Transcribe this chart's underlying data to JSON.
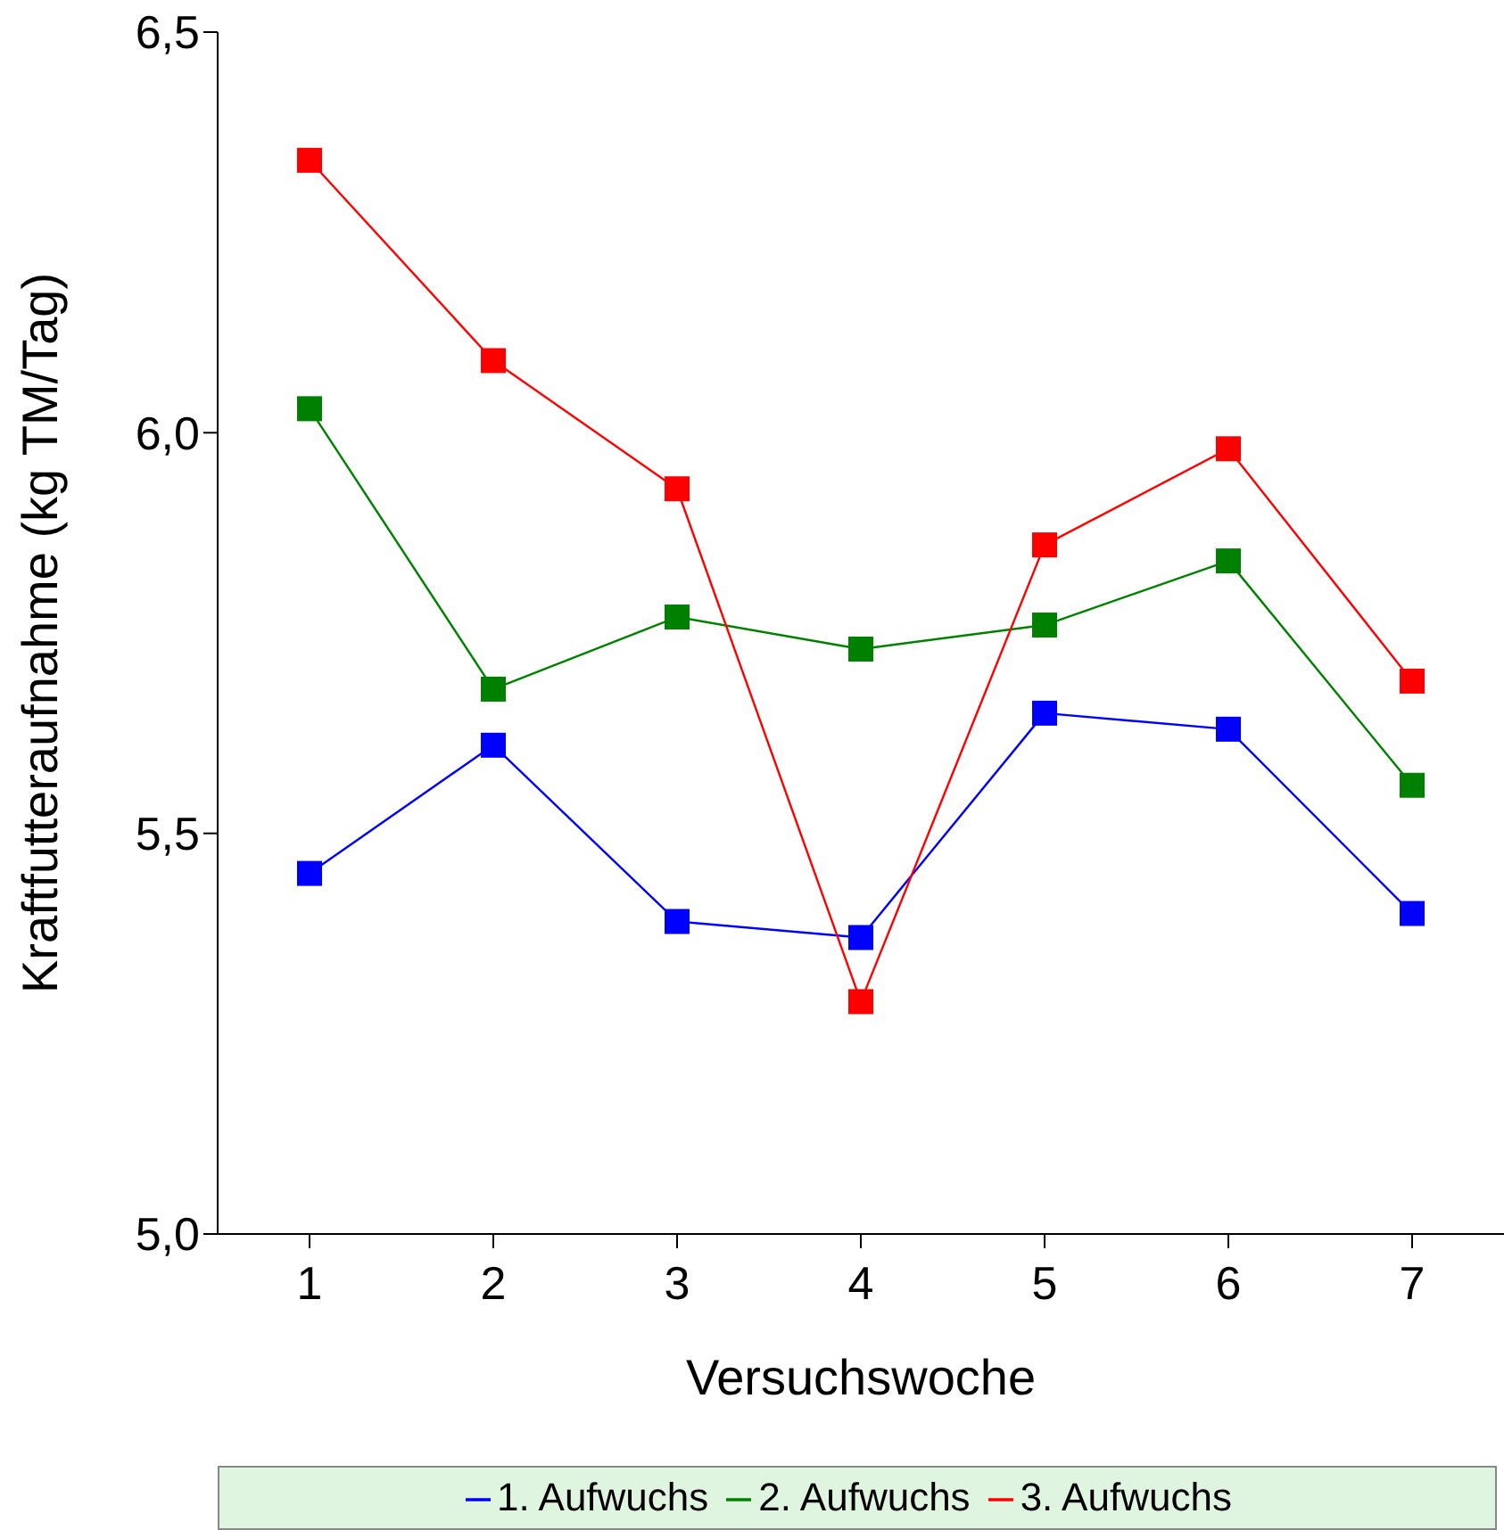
{
  "chart_data": {
    "type": "line",
    "xlabel": "Versuchswoche",
    "ylabel": "Kraftfutteraufnahme (kg TM/Tag)",
    "x": [
      1,
      2,
      3,
      4,
      5,
      6,
      7
    ],
    "xlim": [
      0.5,
      7.5
    ],
    "xticks": [
      1,
      2,
      3,
      4,
      5,
      6,
      7
    ],
    "ylim": [
      5.0,
      6.5
    ],
    "yticks": [
      {
        "value": 5.0,
        "label": "5,0"
      },
      {
        "value": 5.5,
        "label": "5,5"
      },
      {
        "value": 6.0,
        "label": "6,0"
      },
      {
        "value": 6.5,
        "label": "6,5"
      }
    ],
    "series": [
      {
        "name": "1. Aufwuchs",
        "color": "#0000ff",
        "values": [
          5.45,
          5.61,
          5.39,
          5.37,
          5.65,
          5.63,
          5.4
        ]
      },
      {
        "name": "2. Aufwuchs",
        "color": "#008000",
        "values": [
          6.03,
          5.68,
          5.77,
          5.73,
          5.76,
          5.84,
          5.56
        ]
      },
      {
        "name": "3. Aufwuchs",
        "color": "#ff0000",
        "values": [
          6.34,
          6.09,
          5.93,
          5.29,
          5.86,
          5.98,
          5.69
        ]
      }
    ],
    "marker": "square",
    "line_style": "solid",
    "grid": false,
    "legend": "bottom"
  }
}
